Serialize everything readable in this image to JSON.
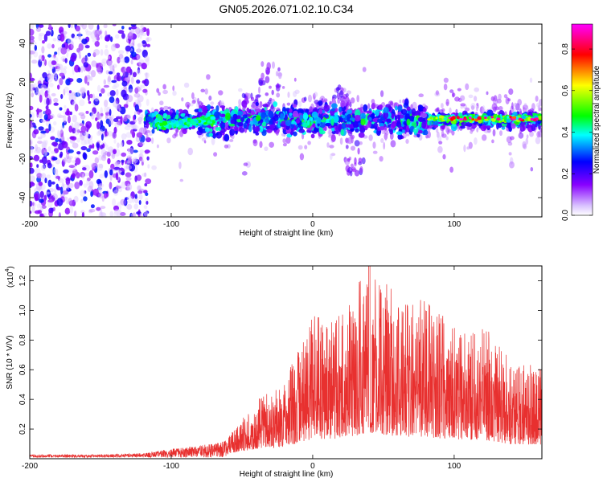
{
  "title": "GN05.2026.071.02.10.C34",
  "chart_data": [
    {
      "type": "heatmap",
      "name": "spectrogram",
      "xlabel": "Height of straight line (km)",
      "ylabel": "Frequency (Hz)",
      "xlim": [
        -200,
        162
      ],
      "ylim": [
        -50,
        50
      ],
      "x_ticks": [
        -200,
        -100,
        0,
        100
      ],
      "y_ticks": [
        -40,
        -20,
        0,
        20,
        40
      ],
      "colorbar": {
        "label": "Normalized spectral amplitude",
        "range": [
          0.0,
          0.92
        ],
        "ticks": [
          0.0,
          0.2,
          0.4,
          0.6,
          0.8
        ],
        "tick_labels": [
          "0.0",
          "0.2",
          "0.4",
          "0.6",
          "0.8"
        ],
        "colormap": [
          "#ffffff",
          "#8800ff",
          "#0000ff",
          "#00ffff",
          "#00ff00",
          "#ffff00",
          "#ff0000",
          "#ff00ff"
        ]
      },
      "features": [
        {
          "x_range": [
            -200,
            -118
          ],
          "freq_range": [
            -50,
            50
          ],
          "amplitude": 0.12,
          "desc": "diffuse noise region"
        },
        {
          "x_range": [
            -118,
            162
          ],
          "center_freq": 0,
          "bandwidth": 8,
          "amplitude": 0.35
        },
        {
          "x_range": [
            -110,
            -70
          ],
          "center_freq": -2,
          "amplitude": 0.45
        },
        {
          "x_range": [
            85,
            162
          ],
          "center_freq": 1,
          "amplitude": 0.9
        }
      ]
    },
    {
      "type": "line",
      "name": "snr",
      "xlabel": "Height of straight line (km)",
      "ylabel": "SNR (10 * V/V)",
      "y_scale_label": "(x10",
      "y_scale_exponent": "4",
      "xlim": [
        -200,
        162
      ],
      "ylim": [
        0,
        1.3
      ],
      "x_ticks": [
        -200,
        -100,
        0,
        100
      ],
      "y_ticks": [
        0.2,
        0.4,
        0.6,
        0.8,
        1.0,
        1.2
      ],
      "y_tick_labels": [
        "0.2",
        "0.4",
        "0.6",
        "0.8",
        "1.0",
        "1.2"
      ],
      "color": "#e8302f",
      "envelope": [
        {
          "x": -200,
          "y": 0.02
        },
        {
          "x": -150,
          "y": 0.02
        },
        {
          "x": -120,
          "y": 0.03
        },
        {
          "x": -100,
          "y": 0.06
        },
        {
          "x": -80,
          "y": 0.08
        },
        {
          "x": -60,
          "y": 0.12
        },
        {
          "x": -40,
          "y": 0.38
        },
        {
          "x": -20,
          "y": 0.5
        },
        {
          "x": 0,
          "y": 0.95
        },
        {
          "x": 20,
          "y": 0.95
        },
        {
          "x": 40,
          "y": 1.3
        },
        {
          "x": 60,
          "y": 1.08
        },
        {
          "x": 80,
          "y": 1.05
        },
        {
          "x": 100,
          "y": 0.9
        },
        {
          "x": 120,
          "y": 0.9
        },
        {
          "x": 140,
          "y": 0.65
        },
        {
          "x": 162,
          "y": 0.62
        }
      ]
    }
  ]
}
